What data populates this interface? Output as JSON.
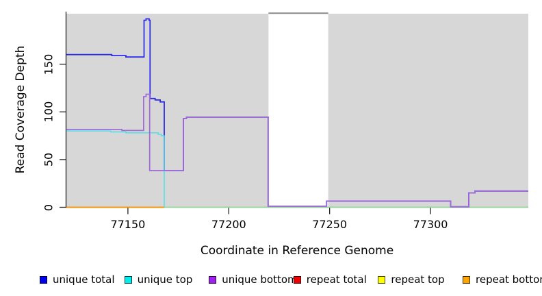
{
  "chart_data": {
    "type": "line",
    "subtype": "step",
    "title": "",
    "xlabel": "Coordinate in Reference Genome",
    "ylabel": "Read Coverage Depth",
    "xlim": [
      77119.5,
      77348.5
    ],
    "ylim": [
      0,
      206.5
    ],
    "x_ticks": [
      77150,
      77200,
      77250,
      77300
    ],
    "y_ticks": [
      0,
      50,
      100,
      150
    ],
    "grid": false,
    "shade_color": "#D7D7D7",
    "gap_border_color": "#8A8A8A",
    "shaded_regions": [
      {
        "x1": 77119.5,
        "x2": 77219.7
      },
      {
        "x1": 77249.3,
        "x2": 77348.5
      }
    ],
    "baseline_segment": {
      "name": "zero baseline",
      "color": "#8FD694",
      "points": [
        [
          77168,
          0
        ]
      ],
      "x_end": 77348.5
    },
    "series": [
      {
        "name": "unique total",
        "color": "#2B2BE8",
        "width": 1.8,
        "points": [
          [
            77119.5,
            160
          ],
          [
            77142,
            159
          ],
          [
            77149,
            157.5
          ],
          [
            77158,
            196
          ],
          [
            77159,
            197.5
          ],
          [
            77160.5,
            196
          ],
          [
            77161,
            114
          ],
          [
            77163.5,
            112.5
          ],
          [
            77166,
            110.5
          ],
          [
            77168,
            38.5
          ],
          [
            77177.5,
            93
          ],
          [
            77179,
            94.5
          ],
          [
            77219.5,
            1
          ],
          [
            77248.5,
            6.5
          ],
          [
            77310,
            0.5
          ],
          [
            77319,
            15
          ],
          [
            77322,
            17
          ]
        ],
        "x_end": 77348.5
      },
      {
        "name": "unique top",
        "color": "#52DEE8",
        "width": 1.5,
        "points": [
          [
            77119.5,
            80
          ],
          [
            77141.5,
            79
          ],
          [
            77149,
            78
          ],
          [
            77165,
            76.5
          ],
          [
            77166.5,
            75
          ],
          [
            77168,
            0
          ]
        ],
        "x_end": 77168.3
      },
      {
        "name": "unique bottom",
        "color": "#A06CD5",
        "width": 1.8,
        "points": [
          [
            77119.5,
            81.5
          ],
          [
            77147,
            80.5
          ],
          [
            77157.8,
            116
          ],
          [
            77159,
            118.5
          ],
          [
            77160.8,
            38.5
          ],
          [
            77177.5,
            93
          ],
          [
            77179,
            94.5
          ],
          [
            77219.5,
            1
          ],
          [
            77248.5,
            6.5
          ],
          [
            77310,
            0.5
          ],
          [
            77319,
            15
          ],
          [
            77322,
            17
          ]
        ],
        "x_end": 77348.5
      },
      {
        "name": "repeat total",
        "color": "#EE0000",
        "width": 1.6,
        "points": [
          [
            77119.5,
            0
          ]
        ],
        "x_end": 77168
      },
      {
        "name": "repeat top",
        "color": "#FFFF00",
        "width": 1.6,
        "points": [
          [
            77119.5,
            0
          ]
        ],
        "x_end": 77168
      },
      {
        "name": "repeat bottom",
        "color": "#FF9100",
        "width": 1.8,
        "points": [
          [
            77119.5,
            0
          ]
        ],
        "x_end": 77168
      }
    ]
  },
  "legend": {
    "position": "bottom",
    "items": [
      {
        "label": "unique total",
        "color": "#0000EE"
      },
      {
        "label": "unique top",
        "color": "#00EEEE"
      },
      {
        "label": "unique bottom",
        "color": "#A020F0"
      },
      {
        "label": "repeat total",
        "color": "#EE0000"
      },
      {
        "label": "repeat top",
        "color": "#FFFF00"
      },
      {
        "label": "repeat bottom",
        "color": "#FFA500"
      }
    ]
  },
  "axis_color": "#222222"
}
